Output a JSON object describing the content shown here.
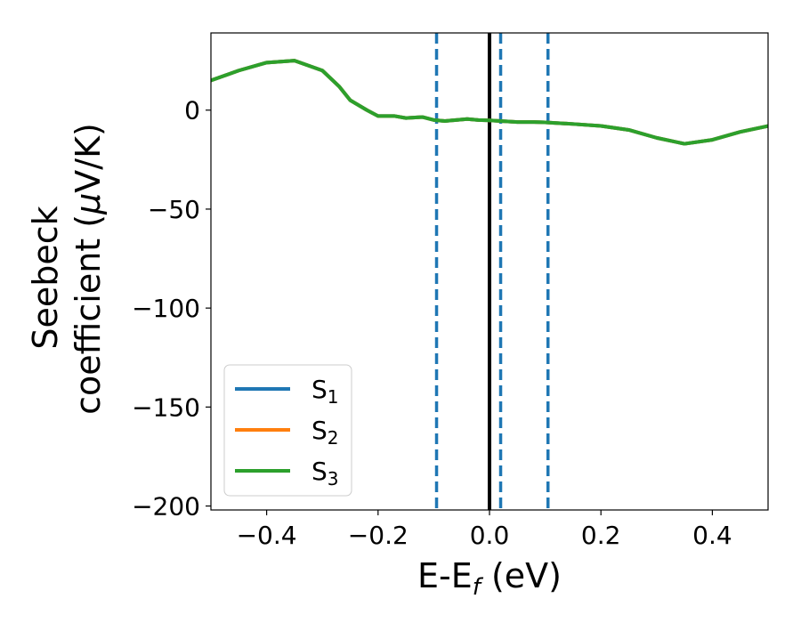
{
  "chart_data": {
    "type": "line",
    "xlabel": {
      "main": "E-E",
      "sub": "f",
      "tail": " (eV)"
    },
    "ylabel": {
      "line1": "Seebeck",
      "line2_pre": "coefficient  (",
      "line2_mu": "μ",
      "line2_post": "V/K)"
    },
    "xlim": [
      -0.5,
      0.5
    ],
    "ylim": [
      -202,
      39
    ],
    "xticks": [
      -0.4,
      -0.2,
      0.0,
      0.2,
      0.4
    ],
    "xtick_labels": [
      "−0.4",
      "−0.2",
      "0.0",
      "0.2",
      "0.4"
    ],
    "yticks": [
      0,
      -50,
      -100,
      -150,
      -200
    ],
    "ytick_labels": [
      "0",
      "−50",
      "−100",
      "−150",
      "−200"
    ],
    "legend_position": "lower-left",
    "series": [
      {
        "name": "S",
        "sub": "1",
        "color": "#1f77b4",
        "x": [
          -0.5,
          -0.45,
          -0.4,
          -0.35,
          -0.3,
          -0.27,
          -0.25,
          -0.22,
          -0.2,
          -0.17,
          -0.15,
          -0.12,
          -0.1,
          -0.08,
          -0.06,
          -0.04,
          -0.02,
          0.0,
          0.02,
          0.05,
          0.08,
          0.1,
          0.12,
          0.15,
          0.2,
          0.25,
          0.3,
          0.35,
          0.4,
          0.45,
          0.5
        ],
        "y": [
          15,
          20,
          24,
          25,
          20,
          12,
          5,
          0,
          -3,
          -3,
          -4,
          -3.5,
          -5,
          -5.5,
          -5,
          -4.5,
          -5,
          -5.2,
          -5.5,
          -6,
          -6,
          -6.2,
          -6.5,
          -7,
          -8,
          -10,
          -14,
          -17,
          -15,
          -11,
          -8
        ]
      },
      {
        "name": "S",
        "sub": "2",
        "color": "#ff7f0e",
        "x": [
          -0.5,
          -0.45,
          -0.4,
          -0.35,
          -0.3,
          -0.27,
          -0.25,
          -0.22,
          -0.2,
          -0.17,
          -0.15,
          -0.12,
          -0.1,
          -0.08,
          -0.06,
          -0.04,
          -0.02,
          0.0,
          0.02,
          0.05,
          0.08,
          0.1,
          0.12,
          0.15,
          0.2,
          0.25,
          0.3,
          0.35,
          0.4,
          0.45,
          0.5
        ],
        "y": [
          15,
          20,
          24,
          25,
          20,
          12,
          5,
          0,
          -3,
          -3,
          -4,
          -3.5,
          -5,
          -5.5,
          -5,
          -4.5,
          -5,
          -5.2,
          -5.5,
          -6,
          -6,
          -6.2,
          -6.5,
          -7,
          -8,
          -10,
          -14,
          -17,
          -15,
          -11,
          -8
        ]
      },
      {
        "name": "S",
        "sub": "3",
        "color": "#2ca02c",
        "x": [
          -0.5,
          -0.45,
          -0.4,
          -0.35,
          -0.3,
          -0.27,
          -0.25,
          -0.22,
          -0.2,
          -0.17,
          -0.15,
          -0.12,
          -0.1,
          -0.08,
          -0.06,
          -0.04,
          -0.02,
          0.0,
          0.02,
          0.05,
          0.08,
          0.1,
          0.12,
          0.15,
          0.2,
          0.25,
          0.3,
          0.35,
          0.4,
          0.45,
          0.5
        ],
        "y": [
          15,
          20,
          24,
          25,
          20,
          12,
          5,
          0,
          -3,
          -3,
          -4,
          -3.5,
          -5,
          -5.5,
          -5,
          -4.5,
          -5,
          -5.2,
          -5.5,
          -6,
          -6,
          -6.2,
          -6.5,
          -7,
          -8,
          -10,
          -14,
          -17,
          -15,
          -11,
          -8
        ]
      }
    ],
    "vlines": [
      {
        "x": -0.095,
        "style": "dashed",
        "color": "#1f77b4"
      },
      {
        "x": 0.0,
        "style": "solid",
        "color": "#000000"
      },
      {
        "x": 0.02,
        "style": "dashed",
        "color": "#1f77b4"
      },
      {
        "x": 0.105,
        "style": "dashed",
        "color": "#1f77b4"
      }
    ],
    "grid": false
  }
}
